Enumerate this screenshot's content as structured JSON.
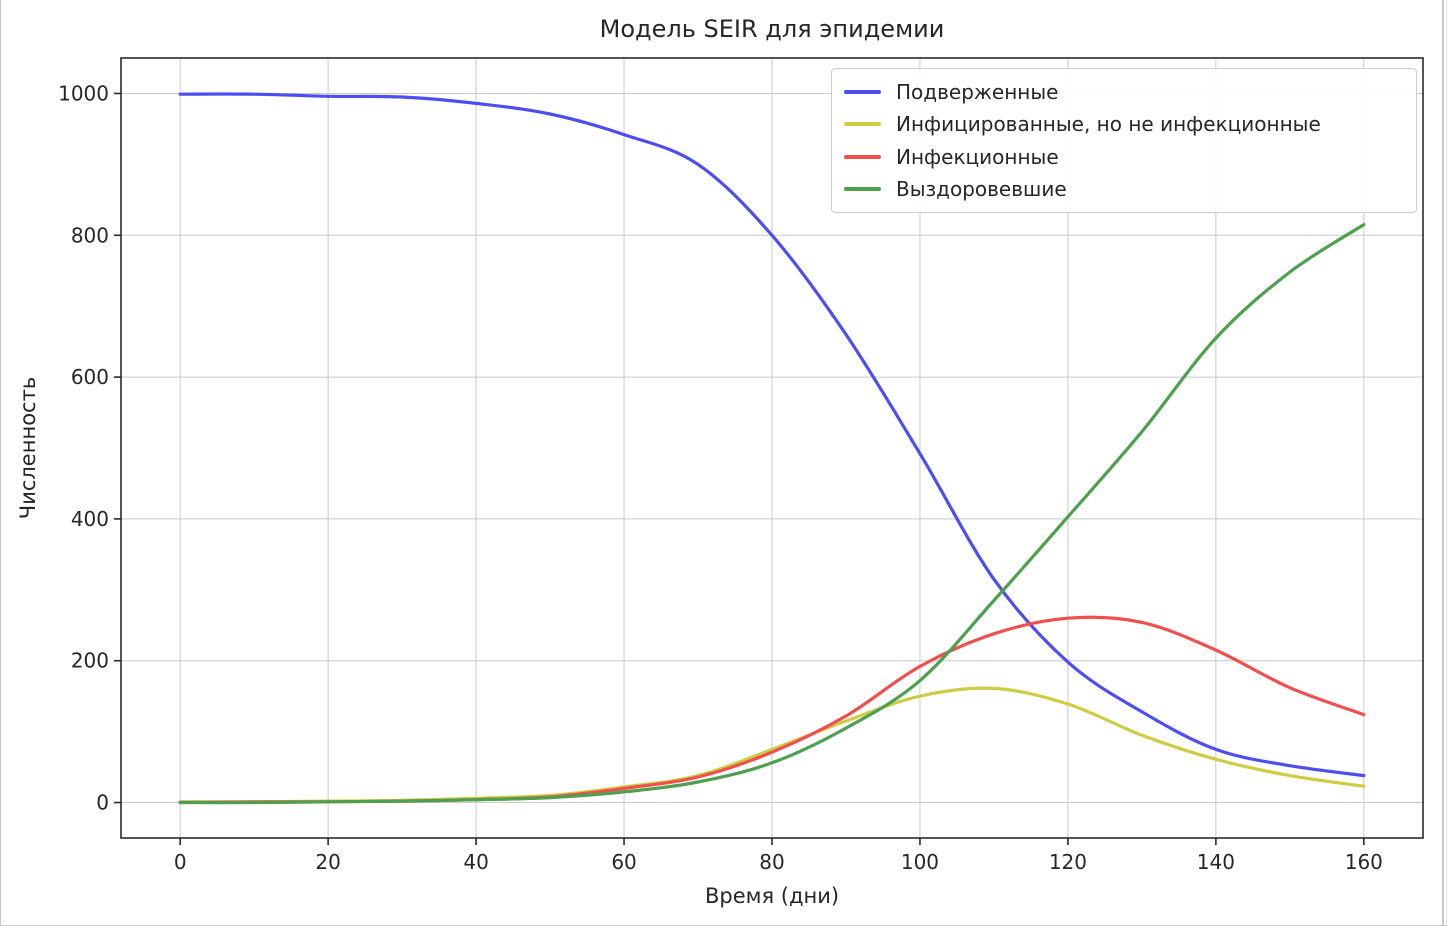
{
  "chart_data": {
    "type": "line",
    "title": "Модель SEIR для эпидемии",
    "xlabel": "Время (дни)",
    "ylabel": "Численность",
    "xlim": [
      -8,
      168
    ],
    "ylim": [
      -50,
      1050
    ],
    "xticks": [
      0,
      20,
      40,
      60,
      80,
      100,
      120,
      140,
      160
    ],
    "yticks": [
      0,
      200,
      400,
      600,
      800,
      1000
    ],
    "grid": true,
    "legend_position": "upper right",
    "x": [
      0,
      10,
      20,
      30,
      40,
      50,
      60,
      70,
      80,
      90,
      100,
      110,
      120,
      130,
      140,
      150,
      160
    ],
    "series": [
      {
        "id": "susceptible",
        "name": "Подверженные",
        "color": "#4D4DF0",
        "values": [
          999,
          999,
          996,
          995,
          986,
          971,
          942,
          900,
          800,
          660,
          492,
          315,
          198,
          128,
          75,
          52,
          38
        ]
      },
      {
        "id": "exposed",
        "name": "Инфицированные, но не инфекционные",
        "color": "#CDCD44",
        "values": [
          1,
          1,
          2,
          3,
          6,
          10,
          22,
          38,
          75,
          115,
          150,
          161,
          139,
          95,
          61,
          38,
          23
        ]
      },
      {
        "id": "infectious",
        "name": "Инфекционные",
        "color": "#F14E4E",
        "values": [
          0,
          1,
          1,
          2,
          4,
          8,
          20,
          36,
          71,
          122,
          192,
          238,
          260,
          254,
          215,
          162,
          124
        ]
      },
      {
        "id": "recovered",
        "name": "Выздоровевшие",
        "color": "#4DA04D",
        "values": [
          0,
          0,
          1,
          2,
          4,
          7,
          15,
          29,
          56,
          105,
          172,
          285,
          403,
          523,
          655,
          748,
          815
        ]
      }
    ],
    "colors": {
      "grid": "#c9c9c9",
      "spine": "#2b2b2b",
      "text": "#262626"
    }
  }
}
